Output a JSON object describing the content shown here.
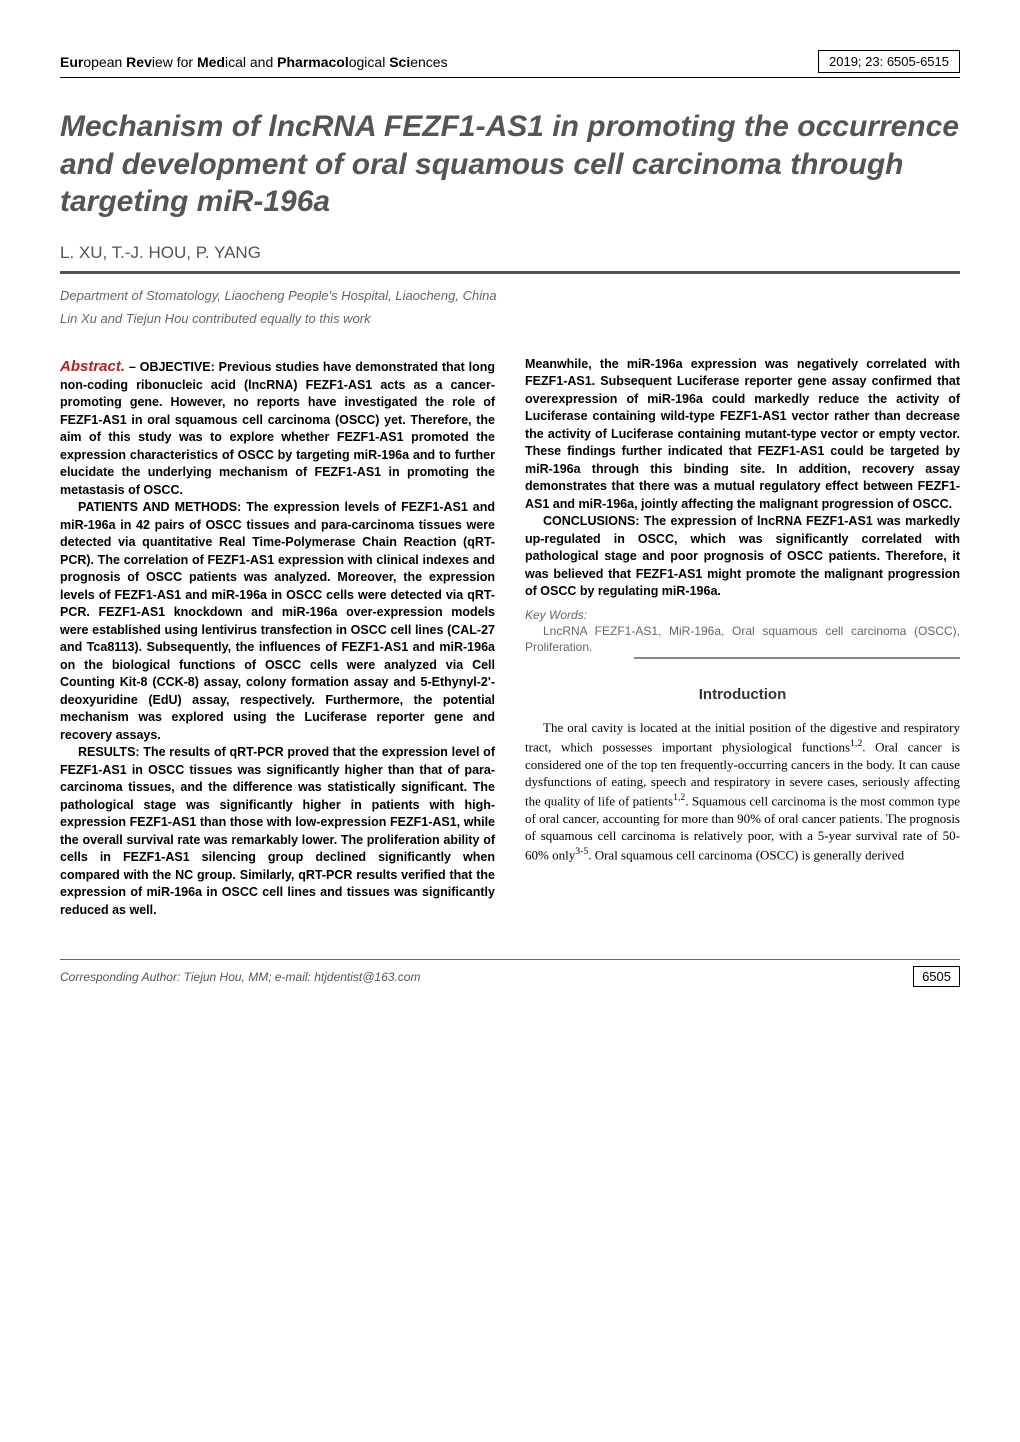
{
  "header": {
    "journal_html": "<b>Eur</b>opean <b>Rev</b>iew for <b>Med</b>ical and <b>Pharmacol</b>ogical <b>Sci</b>ences",
    "issue": "2019; 23: 6505-6515"
  },
  "title": "Mechanism of lncRNA FEZF1-AS1 in promoting the occurrence and development of oral squamous cell carcinoma through targeting miR-196a",
  "authors": "L. XU, T.-J. HOU, P. YANG",
  "affiliation": "Department of Stomatology, Liaocheng People's Hospital, Liaocheng, China",
  "contribution": "Lin Xu and Tiejun Hou contributed equally to this work",
  "abstract": {
    "label": "Abstract.",
    "objective_head": " – OBJECTIVE:",
    "objective": " Previous studies have demonstrated that long non-coding ribonucleic acid (lncRNA) FEZF1-AS1 acts as a cancer-promoting gene. However, no reports have investigated the role of FEZF1-AS1 in oral squamous cell carcinoma (OSCC) yet. Therefore, the aim of this study was to explore whether FEZF1-AS1 promoted the expression characteristics of OSCC by targeting miR-196a and to further elucidate the underlying mechanism of FEZF1-AS1 in promoting the metastasis of OSCC.",
    "patients_head": "PATIENTS AND METHODS:",
    "patients": " The expression levels of FEZF1-AS1 and miR-196a in 42 pairs of OSCC tissues and para-carcinoma tissues were detected via quantitative Real Time-Polymerase Chain Reaction (qRT-PCR). The correlation of FEZF1-AS1 expression with clinical indexes and prognosis of OSCC patients was analyzed. Moreover, the expression levels of FEZF1-AS1 and miR-196a in OSCC cells were detected via qRT-PCR. FEZF1-AS1 knockdown and miR-196a over-expression models were established using lentivirus transfection in OSCC cell lines (CAL-27 and Tca8113). Subsequently, the influences of FEZF1-AS1 and miR-196a on the biological functions of OSCC cells were analyzed via Cell Counting Kit-8 (CCK-8) assay, colony formation assay and 5-Ethynyl-2'-deoxyuridine (EdU) assay, respectively. Furthermore, the potential mechanism was explored using the Luciferase reporter gene and recovery assays.",
    "results_head": "RESULTS:",
    "results": " The results of qRT-PCR proved that the expression level of FEZF1-AS1 in OSCC tissues was significantly higher than that of para-carcinoma tissues, and the difference was statistically significant. The pathological stage was significantly higher in patients with high-expression FEZF1-AS1 than those with low-expression FEZF1-AS1, while the overall survival rate was remarkably lower. The proliferation ability of cells in FEZF1-AS1 silencing group declined significantly when compared with the NC group. Similarly, qRT-PCR results verified that the expression of miR-196a in OSCC cell lines and tissues was significantly reduced as well.",
    "results2": "Meanwhile, the miR-196a expression was negatively correlated with FEZF1-AS1. Subsequent Luciferase reporter gene assay confirmed that overexpression of miR-196a could markedly reduce the activity of Luciferase containing wild-type FEZF1-AS1 vector rather than decrease the activity of Luciferase containing mutant-type vector or empty vector. These findings further indicated that FEZF1-AS1 could be targeted by miR-196a through this binding site. In addition, recovery assay demonstrates that there was a mutual regulatory effect between FEZF1-AS1 and miR-196a, jointly affecting the malignant progression of OSCC.",
    "conclusions_head": "CONCLUSIONS:",
    "conclusions": " The expression of lncRNA FEZF1-AS1 was markedly up-regulated in OSCC, which was significantly correlated with pathological stage and poor prognosis of OSCC patients. Therefore, it was believed that FEZF1-AS1 might promote the malignant progression of OSCC by regulating miR-196a."
  },
  "keywords": {
    "label": "Key Words:",
    "body": "LncRNA FEZF1-AS1, MiR-196a, Oral squamous cell carcinoma (OSCC), Proliferation."
  },
  "introduction": {
    "heading": "Introduction",
    "body_html": "The oral cavity is located at the initial position of the digestive and respiratory tract, which possesses important physiological functions<sup>1,2</sup>. Oral cancer is considered one of the top ten frequently-occurring cancers in the body. It can cause dysfunctions of eating, speech and respiratory in severe cases, seriously affecting the quality of life of patients<sup>1,2</sup>. Squamous cell carcinoma is the most common type of oral cancer, accounting for more than 90% of oral cancer patients. The prognosis of squamous cell carcinoma is relatively poor, with a 5-year survival rate of 50-60% only<sup>3-5</sup>. Oral squamous cell carcinoma (OSCC) is generally derived"
  },
  "footer": {
    "corresponding": "Corresponding Author: Tiejun Hou, MM; e-mail: htjdentist@163.com",
    "page": "6505"
  },
  "colors": {
    "accent_red": "#b22222",
    "muted_gray": "#555555",
    "text": "#000000",
    "bg": "#ffffff"
  },
  "typography": {
    "title_pt": 30,
    "body_pt": 13,
    "abstract_pt": 12.5
  }
}
